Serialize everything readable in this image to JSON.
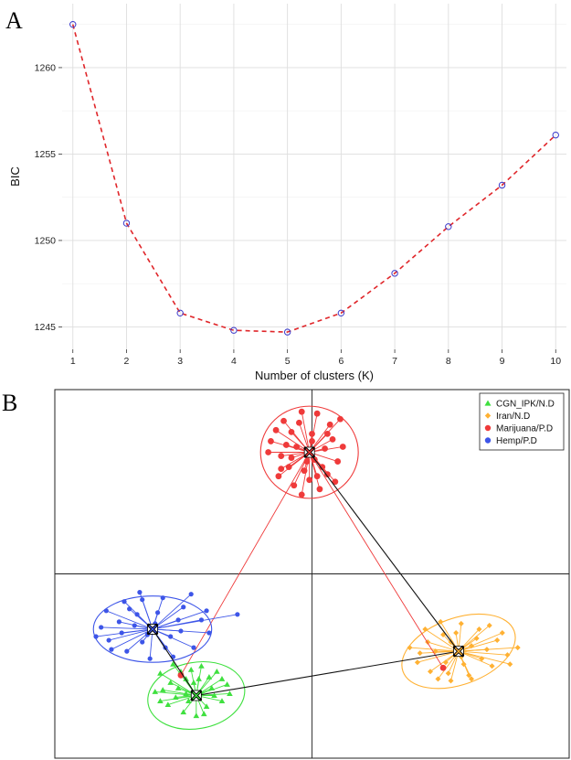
{
  "panel_a": {
    "letter": "A"
  },
  "panel_b": {
    "letter": "B"
  },
  "chart_data": [
    {
      "type": "line",
      "title": "",
      "xlabel": "Number of clusters (K)",
      "ylabel": "BIC",
      "x": [
        1,
        2,
        3,
        4,
        5,
        6,
        7,
        8,
        9,
        10
      ],
      "series": [
        {
          "values": [
            1262.5,
            1251.0,
            1245.8,
            1244.8,
            1244.7,
            1245.8,
            1248.1,
            1250.8,
            1253.2,
            1256.1
          ]
        }
      ],
      "xticks": [
        "1",
        "2",
        "3",
        "4",
        "5",
        "6",
        "7",
        "8",
        "9",
        "10"
      ],
      "yticks": [
        "1245",
        "1250",
        "1255",
        "1260"
      ],
      "xlim": [
        0.8,
        10.2
      ],
      "ylim": [
        1243.7,
        1263.7
      ],
      "grid": true,
      "line_color": "#e0262a",
      "marker_color": "#3a3acc",
      "line_style": "dashed"
    },
    {
      "type": "scatter",
      "title": "",
      "xlabel": "",
      "ylabel": "",
      "xlim": [
        0,
        100
      ],
      "ylim": [
        0,
        100
      ],
      "axes_cross_at": [
        50,
        50
      ],
      "legend_position": "top-right",
      "centroid_marker": "black-x",
      "centroid_links": [
        [
          "CGN_IPK/N.D",
          "Hemp/P.D"
        ],
        [
          "CGN_IPK/N.D",
          "Iran/N.D"
        ],
        [
          "Iran/N.D",
          "Marijuana/P.D"
        ]
      ],
      "series": [
        {
          "name": "CGN_IPK/N.D",
          "color": "#3fe03f",
          "marker": "triangle",
          "centroid": [
            27.5,
            17
          ],
          "ellipse_radius": [
            9.5,
            9
          ],
          "ellipse_angle": -10,
          "points": [
            [
              20.5,
              23
            ],
            [
              23,
              25.5
            ],
            [
              25.5,
              21.5
            ],
            [
              28.5,
              25
            ],
            [
              31.5,
              23.5
            ],
            [
              33.5,
              20
            ],
            [
              32.5,
              15.5
            ],
            [
              29,
              12
            ],
            [
              25,
              12.5
            ],
            [
              22,
              14.5
            ],
            [
              21,
              18.5
            ],
            [
              24,
              19
            ],
            [
              27,
              20.5
            ],
            [
              30.5,
              19
            ],
            [
              29.5,
              14
            ],
            [
              26,
              15.5
            ],
            [
              23.5,
              16.5
            ],
            [
              25.5,
              17.5
            ],
            [
              31,
              17
            ],
            [
              28,
              21.5
            ],
            [
              22.5,
              20.5
            ],
            [
              34,
              17.5
            ],
            [
              27.5,
              11.5
            ],
            [
              24.5,
              23.5
            ],
            [
              30,
              22
            ],
            [
              19.5,
              18
            ],
            [
              26.5,
              24
            ],
            [
              32.5,
              21.5
            ],
            [
              20.5,
              15.5
            ],
            [
              28.5,
              17.5
            ]
          ]
        },
        {
          "name": "Iran/N.D",
          "color": "#ffb133",
          "marker": "diamond",
          "centroid": [
            78.5,
            29
          ],
          "ellipse_radius": [
            11.5,
            9
          ],
          "ellipse_angle": -20,
          "points": [
            [
              69,
              30
            ],
            [
              72,
              35
            ],
            [
              75,
              37
            ],
            [
              79,
              36.5
            ],
            [
              82.5,
              35
            ],
            [
              86,
              32
            ],
            [
              88,
              28
            ],
            [
              90,
              30
            ],
            [
              85,
              25
            ],
            [
              81,
              21.5
            ],
            [
              77,
              21
            ],
            [
              73,
              23.5
            ],
            [
              70.5,
              26
            ],
            [
              74,
              29
            ],
            [
              77,
              31.5
            ],
            [
              81,
              30.5
            ],
            [
              83,
              27
            ],
            [
              79.5,
              25.5
            ],
            [
              76,
              26
            ],
            [
              72.5,
              31.5
            ],
            [
              84.5,
              36
            ],
            [
              87,
              34
            ],
            [
              78,
              34
            ],
            [
              80.5,
              22.5
            ],
            [
              74.5,
              21.5
            ],
            [
              71,
              28.5
            ],
            [
              88.5,
              25.5
            ],
            [
              82,
              32.5
            ],
            [
              75.5,
              33.5
            ],
            [
              84,
              29.5
            ],
            [
              79,
              27.5
            ],
            [
              76.5,
              23
            ]
          ]
        },
        {
          "name": "Marijuana/P.D",
          "color": "#ef3a3a",
          "marker": "circle",
          "centroid": [
            49.5,
            83
          ],
          "ellipse_radius": [
            9.5,
            12.5
          ],
          "ellipse_angle": 0,
          "points": [
            [
              48,
              94
            ],
            [
              51,
              93.5
            ],
            [
              44.5,
              91.5
            ],
            [
              53.5,
              90.5
            ],
            [
              46,
              88.5
            ],
            [
              50,
              88
            ],
            [
              54,
              86.5
            ],
            [
              42,
              86
            ],
            [
              47,
              84.5
            ],
            [
              52.5,
              84
            ],
            [
              44,
              82
            ],
            [
              50.5,
              81
            ],
            [
              55,
              80.5
            ],
            [
              45.5,
              79
            ],
            [
              48.5,
              78
            ],
            [
              53,
              77
            ],
            [
              43.5,
              76.5
            ],
            [
              49.5,
              75.5
            ],
            [
              46.5,
              74
            ],
            [
              51.5,
              73
            ],
            [
              41.5,
              83
            ],
            [
              56,
              84.5
            ],
            [
              47.5,
              91
            ],
            [
              52,
              79
            ],
            [
              44,
              78.5
            ],
            [
              54.5,
              75
            ],
            [
              48,
              71.5
            ],
            [
              50,
              86
            ],
            [
              45,
              85
            ],
            [
              53,
              88
            ],
            [
              49,
              80.5
            ],
            [
              46,
              81.5
            ],
            [
              51,
              76.5
            ],
            [
              43,
              89
            ],
            [
              55.5,
              92
            ],
            [
              24.5,
              22.5
            ],
            [
              75.5,
              24.5
            ]
          ]
        },
        {
          "name": "Hemp/P.D",
          "color": "#3d55e8",
          "marker": "circle",
          "centroid": [
            19,
            35
          ],
          "ellipse_radius": [
            11.5,
            9
          ],
          "ellipse_angle": 0,
          "points": [
            [
              10,
              40
            ],
            [
              13.5,
              42.5
            ],
            [
              17,
              43
            ],
            [
              21,
              43.5
            ],
            [
              25,
              41
            ],
            [
              28.5,
              37.5
            ],
            [
              30,
              34
            ],
            [
              27,
              30
            ],
            [
              23,
              27.5
            ],
            [
              18.5,
              27
            ],
            [
              14,
              29
            ],
            [
              10.5,
              32
            ],
            [
              9,
              35.5
            ],
            [
              12.5,
              37
            ],
            [
              16,
              39
            ],
            [
              20,
              39.5
            ],
            [
              24,
              37.5
            ],
            [
              22.5,
              33
            ],
            [
              17,
              31.5
            ],
            [
              13,
              34
            ],
            [
              15.5,
              36
            ],
            [
              19.5,
              36.5
            ],
            [
              11,
              29.5
            ],
            [
              26.5,
              44.5
            ],
            [
              8,
              33
            ],
            [
              29.5,
              40
            ],
            [
              21.5,
              30
            ],
            [
              14.5,
              40.5
            ],
            [
              18,
              33.5
            ],
            [
              24.5,
              34.5
            ],
            [
              16.5,
              45
            ],
            [
              35.5,
              39
            ]
          ]
        }
      ]
    }
  ]
}
